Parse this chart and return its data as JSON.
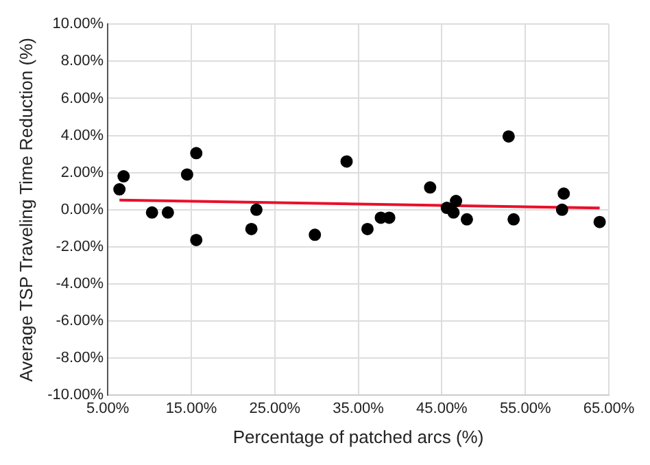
{
  "chart_data": {
    "type": "scatter",
    "xlabel": "Percentage of patched arcs (%)",
    "ylabel": "Average TSP Traveling Time Reduction (%)",
    "xlim": [
      5,
      65
    ],
    "xticks": [
      {
        "value": 5,
        "label": "5.00%"
      },
      {
        "value": 15,
        "label": "15.00%"
      },
      {
        "value": 25,
        "label": "25.00%"
      },
      {
        "value": 35,
        "label": "35.00%"
      },
      {
        "value": 45,
        "label": "45.00%"
      },
      {
        "value": 55,
        "label": "55.00%"
      },
      {
        "value": 65,
        "label": "65.00%"
      }
    ],
    "ylim": [
      -10,
      10
    ],
    "yticks": [
      {
        "value": -10,
        "label": "-10.00%"
      },
      {
        "value": -8,
        "label": "-8.00%"
      },
      {
        "value": -6,
        "label": "-6.00%"
      },
      {
        "value": -4,
        "label": "-4.00%"
      },
      {
        "value": -2,
        "label": "-2.00%"
      },
      {
        "value": 0,
        "label": "0.00%"
      },
      {
        "value": 2,
        "label": "2.00%"
      },
      {
        "value": 4,
        "label": "4.00%"
      },
      {
        "value": 6,
        "label": "6.00%"
      },
      {
        "value": 8,
        "label": "8.00%"
      },
      {
        "value": 10,
        "label": "10.00%"
      }
    ],
    "grid": true,
    "series": [
      {
        "marker": "circle",
        "color": "#000000",
        "x": [
          6.4,
          6.9,
          10.3,
          12.2,
          14.5,
          15.6,
          15.6,
          22.2,
          22.8,
          29.8,
          33.6,
          36.1,
          37.7,
          38.7,
          43.6,
          45.6,
          46.4,
          46.7,
          48.0,
          53.0,
          53.6,
          59.4,
          59.6,
          63.9
        ],
        "values": [
          1.1,
          1.8,
          -0.15,
          -0.15,
          1.9,
          3.05,
          -1.63,
          -1.04,
          0,
          -1.35,
          2.6,
          -1.04,
          -0.43,
          -0.43,
          1.2,
          0.1,
          -0.15,
          0.47,
          -0.52,
          3.95,
          -0.52,
          0,
          0.87,
          -0.66
        ]
      },
      {
        "type": "line",
        "marker": "none",
        "color": "#e8102a",
        "x": [
          6.4,
          63.9
        ],
        "values": [
          0.52,
          0.09
        ]
      }
    ]
  }
}
